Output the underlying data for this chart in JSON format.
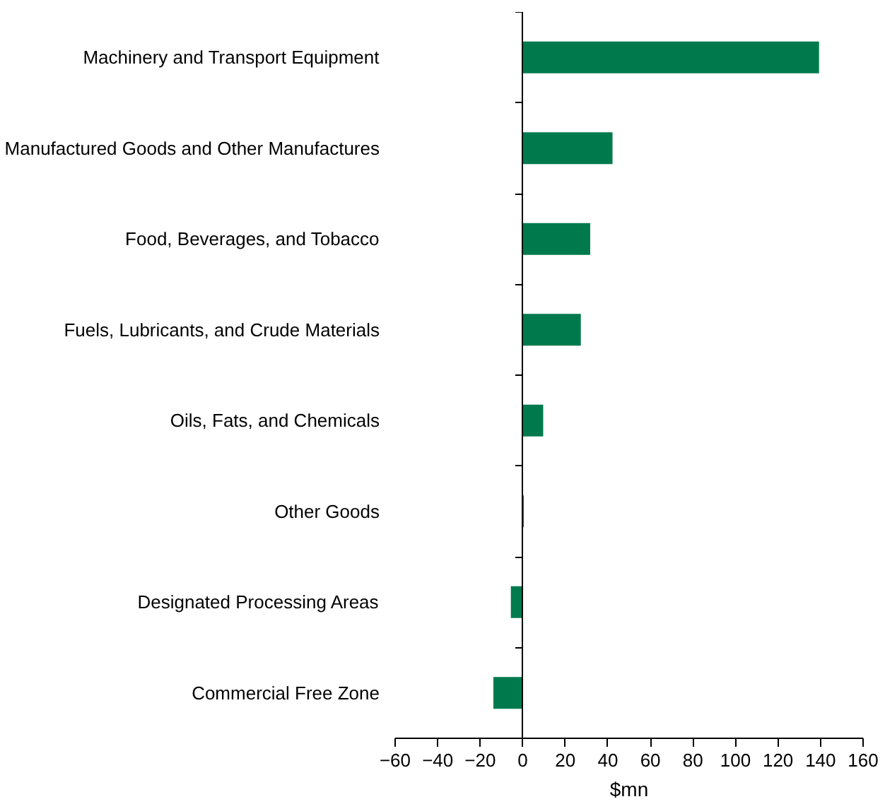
{
  "chart_data": {
    "type": "bar",
    "orientation": "horizontal",
    "xlabel": "$mn",
    "categories": [
      "Machinery and Transport Equipment",
      "Manufactured Goods and Other Manufactures",
      "Food, Beverages, and Tobacco",
      "Fuels, Lubricants, and Crude Materials",
      "Oils, Fats, and Chemicals",
      "Other Goods",
      "Designated Processing Areas",
      "Commercial Free Zone"
    ],
    "values": [
      139.3,
      42.2,
      31.7,
      27.3,
      9.6,
      0.5,
      -5.6,
      -13.8
    ],
    "color": "#007a4d",
    "xlim": [
      -60,
      160
    ],
    "xticks": [
      -60,
      -40,
      -20,
      0,
      20,
      40,
      60,
      80,
      100,
      120,
      140,
      160
    ]
  }
}
